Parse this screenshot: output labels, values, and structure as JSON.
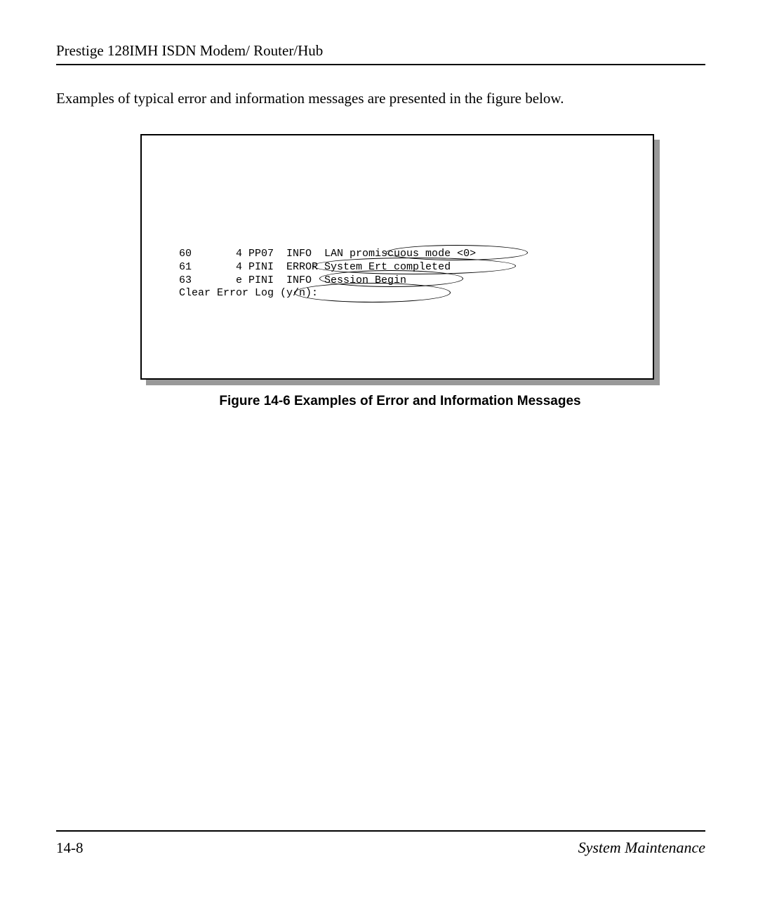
{
  "header": {
    "title": "Prestige 128IMH ISDN Modem/ Router/Hub"
  },
  "intro": {
    "text": "Examples of typical error and information messages are presented in the figure below."
  },
  "figure": {
    "lines": {
      "l1": "  60       4 PP07  INFO  LAN promiscuous mode <0>",
      "l2": "  61       4 PINI  ERROR System Ert completed",
      "l3": "  63       e PINI  INFO  Session Begin",
      "l4": "  Clear Error Log (y/n):"
    },
    "caption": "Figure 14-6 Examples of Error and Information Messages",
    "ellipse_style": {
      "border_color": "#000000",
      "border_width": 1
    },
    "box_style": {
      "border_color": "#000000",
      "background": "#ffffff",
      "shadow_color": "#999999"
    },
    "font": {
      "family": "Courier New",
      "size": 15
    }
  },
  "footer": {
    "page": "14-8",
    "section": "System Maintenance"
  },
  "colors": {
    "text": "#000000",
    "background": "#ffffff",
    "rule": "#000000",
    "shadow": "#999999"
  }
}
